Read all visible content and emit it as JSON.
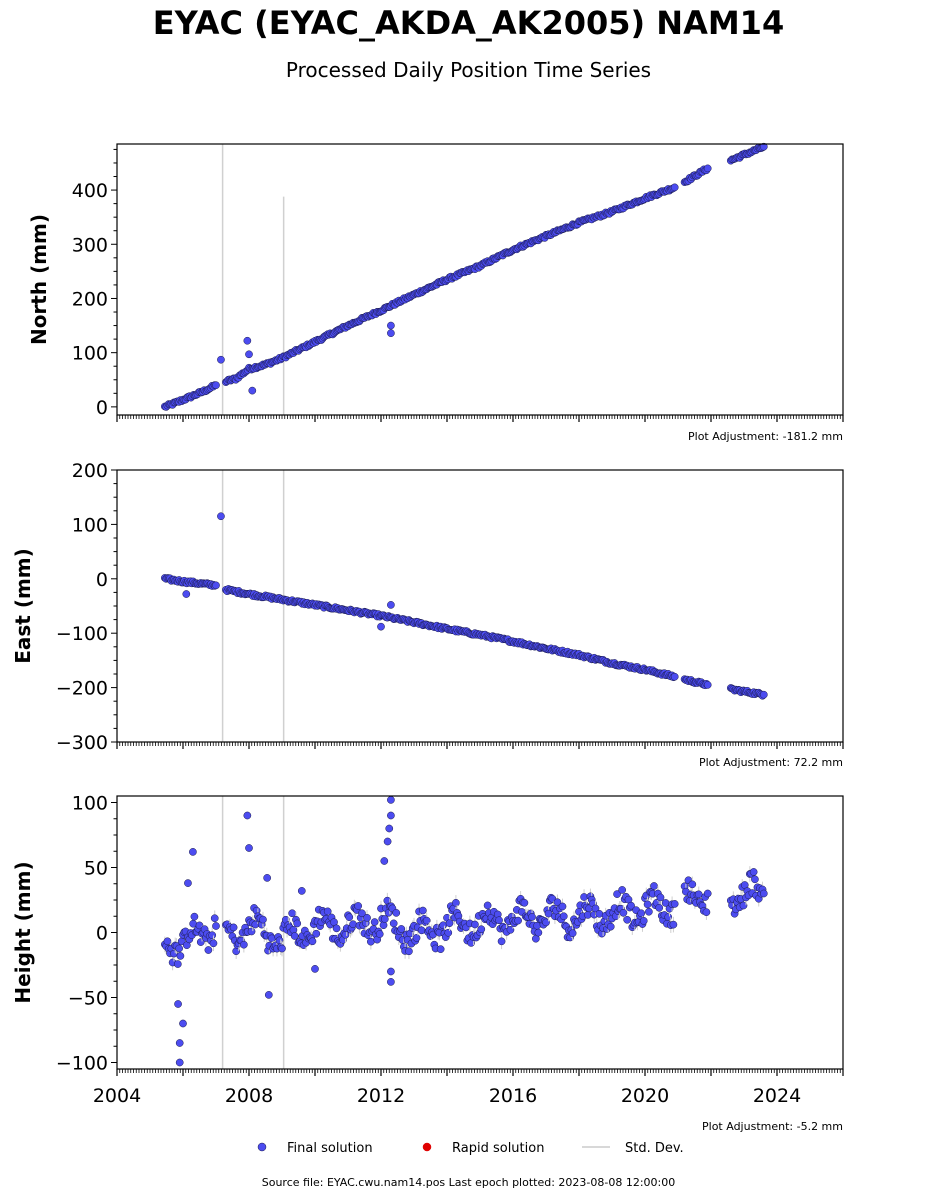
{
  "header": {
    "title": "EYAC (EYAC_AKDA_AK2005) NAM14",
    "subtitle": "Processed Daily Position Time Series"
  },
  "footer": {
    "source": "Source file: EYAC.cwu.nam14.pos  Last epoch plotted: 2023-08-08 12:00:00"
  },
  "legend": {
    "placement": "bottom-center",
    "items": [
      {
        "label": "Final solution",
        "marker": "circle",
        "color": "#4c4cf0"
      },
      {
        "label": "Rapid solution",
        "marker": "circle",
        "color": "#e00000"
      },
      {
        "label": "Std. Dev.",
        "marker": "line",
        "color": "#cccccc"
      }
    ]
  },
  "chart_data": [
    {
      "type": "scatter",
      "ylabel": "North (mm)",
      "adjustment": "Plot Adjustment: -181.2 mm",
      "xlim": [
        2004,
        2026
      ],
      "ylim": [
        -15,
        485
      ],
      "yticks": [
        0,
        100,
        200,
        300,
        400
      ],
      "ytick_labels": [
        "0",
        "100",
        "200",
        "300",
        "400"
      ],
      "vlines": [
        {
          "x": 2007.2,
          "y": [
            -15,
            485
          ]
        },
        {
          "x": 2009.05,
          "y": [
            -15,
            388
          ]
        }
      ],
      "series": [
        {
          "segments": [
            {
              "x": [
                2005.45,
                2005.8,
                2006.2,
                2006.6,
                2007.0
              ],
              "y": [
                0,
                8,
                18,
                28,
                40
              ]
            },
            {
              "x": [
                2007.3,
                2007.6,
                2008.0,
                2008.5,
                2009.0,
                2010.0,
                2011.0,
                2012.0,
                2013.0,
                2014.0,
                2015.0,
                2016.0,
                2017.0,
                2018.0,
                2019.0,
                2020.0,
                2020.9
              ],
              "y": [
                47,
                52,
                70,
                78,
                90,
                120,
                150,
                178,
                207,
                235,
                260,
                290,
                315,
                340,
                360,
                385,
                405
              ]
            },
            {
              "x": [
                2021.2,
                2021.9
              ],
              "y": [
                415,
                440
              ]
            },
            {
              "x": [
                2022.6,
                2023.6
              ],
              "y": [
                455,
                480
              ]
            }
          ]
        }
      ],
      "outliers": [
        {
          "x": 2007.15,
          "y": 87
        },
        {
          "x": 2007.95,
          "y": 122
        },
        {
          "x": 2008.0,
          "y": 97
        },
        {
          "x": 2008.1,
          "y": 30
        },
        {
          "x": 2012.3,
          "y": 136
        },
        {
          "x": 2012.3,
          "y": 150
        }
      ]
    },
    {
      "type": "scatter",
      "ylabel": "East (mm)",
      "adjustment": "Plot Adjustment: 72.2 mm",
      "xlim": [
        2004,
        2026
      ],
      "ylim": [
        -300,
        200
      ],
      "yticks": [
        -300,
        -200,
        -100,
        0,
        100,
        200
      ],
      "ytick_labels": [
        "−300",
        "−200",
        "−100",
        "0",
        "100",
        "200"
      ],
      "vlines": [
        {
          "x": 2007.2,
          "y": [
            -300,
            200
          ]
        },
        {
          "x": 2009.05,
          "y": [
            -300,
            200
          ]
        }
      ],
      "series": [
        {
          "segments": [
            {
              "x": [
                2005.45,
                2006.0,
                2007.0
              ],
              "y": [
                0,
                -5,
                -12
              ]
            },
            {
              "x": [
                2007.3,
                2008.0,
                2009.0,
                2010.0,
                2011.0,
                2012.0,
                2013.0,
                2014.0,
                2015.0,
                2016.0,
                2017.0,
                2018.0,
                2019.0,
                2020.0,
                2020.9
              ],
              "y": [
                -20,
                -28,
                -38,
                -48,
                -58,
                -68,
                -80,
                -92,
                -103,
                -115,
                -128,
                -140,
                -155,
                -167,
                -180
              ]
            },
            {
              "x": [
                2021.2,
                2021.9
              ],
              "y": [
                -185,
                -195
              ]
            },
            {
              "x": [
                2022.6,
                2023.6
              ],
              "y": [
                -203,
                -213
              ]
            }
          ]
        }
      ],
      "outliers": [
        {
          "x": 2007.15,
          "y": 115
        },
        {
          "x": 2012.3,
          "y": -48
        },
        {
          "x": 2012.0,
          "y": -88
        },
        {
          "x": 2006.1,
          "y": -28
        }
      ]
    },
    {
      "type": "scatter",
      "ylabel": "Height (mm)",
      "adjustment": "Plot Adjustment: -5.2 mm",
      "xlim": [
        2004,
        2026
      ],
      "ylim": [
        -105,
        105
      ],
      "yticks": [
        -100,
        -50,
        0,
        50,
        100
      ],
      "ytick_labels": [
        "−100",
        "−50",
        "0",
        "50",
        "100"
      ],
      "xticks": [
        2004,
        2008,
        2012,
        2016,
        2020,
        2024
      ],
      "xtick_labels": [
        "2004",
        "2008",
        "2012",
        "2016",
        "2020",
        "2024"
      ],
      "vlines": [
        {
          "x": 2007.2,
          "y": [
            -105,
            105
          ]
        },
        {
          "x": 2009.05,
          "y": [
            -105,
            105
          ]
        }
      ],
      "series": [
        {
          "segments": [
            {
              "x": [
                2005.45,
                2006.0,
                2006.5,
                2007.0
              ],
              "y": [
                -5,
                -10,
                0,
                5
              ]
            },
            {
              "x": [
                2007.3,
                2008.0,
                2009.0,
                2010.0,
                2011.0,
                2012.0,
                2013.0,
                2014.0,
                2015.0,
                2016.0,
                2017.0,
                2018.0,
                2019.0,
                2020.0,
                2020.9
              ],
              "y": [
                -5,
                5,
                -5,
                5,
                5,
                10,
                0,
                5,
                8,
                10,
                12,
                13,
                15,
                18,
                22
              ]
            },
            {
              "x": [
                2021.2,
                2021.9
              ],
              "y": [
                25,
                30
              ]
            },
            {
              "x": [
                2022.6,
                2023.6
              ],
              "y": [
                30,
                30
              ]
            }
          ]
        }
      ],
      "outliers": [
        {
          "x": 2005.9,
          "y": -100
        },
        {
          "x": 2005.9,
          "y": -85
        },
        {
          "x": 2006.0,
          "y": -70
        },
        {
          "x": 2005.85,
          "y": -55
        },
        {
          "x": 2006.3,
          "y": 62
        },
        {
          "x": 2006.15,
          "y": 38
        },
        {
          "x": 2007.95,
          "y": 90
        },
        {
          "x": 2008.0,
          "y": 65
        },
        {
          "x": 2008.6,
          "y": -48
        },
        {
          "x": 2008.55,
          "y": 42
        },
        {
          "x": 2012.3,
          "y": 102
        },
        {
          "x": 2012.3,
          "y": 90
        },
        {
          "x": 2012.25,
          "y": 80
        },
        {
          "x": 2012.2,
          "y": 70
        },
        {
          "x": 2012.1,
          "y": 55
        },
        {
          "x": 2012.3,
          "y": -30
        },
        {
          "x": 2012.3,
          "y": -38
        },
        {
          "x": 2010.0,
          "y": -28
        },
        {
          "x": 2009.6,
          "y": 32
        }
      ]
    }
  ]
}
